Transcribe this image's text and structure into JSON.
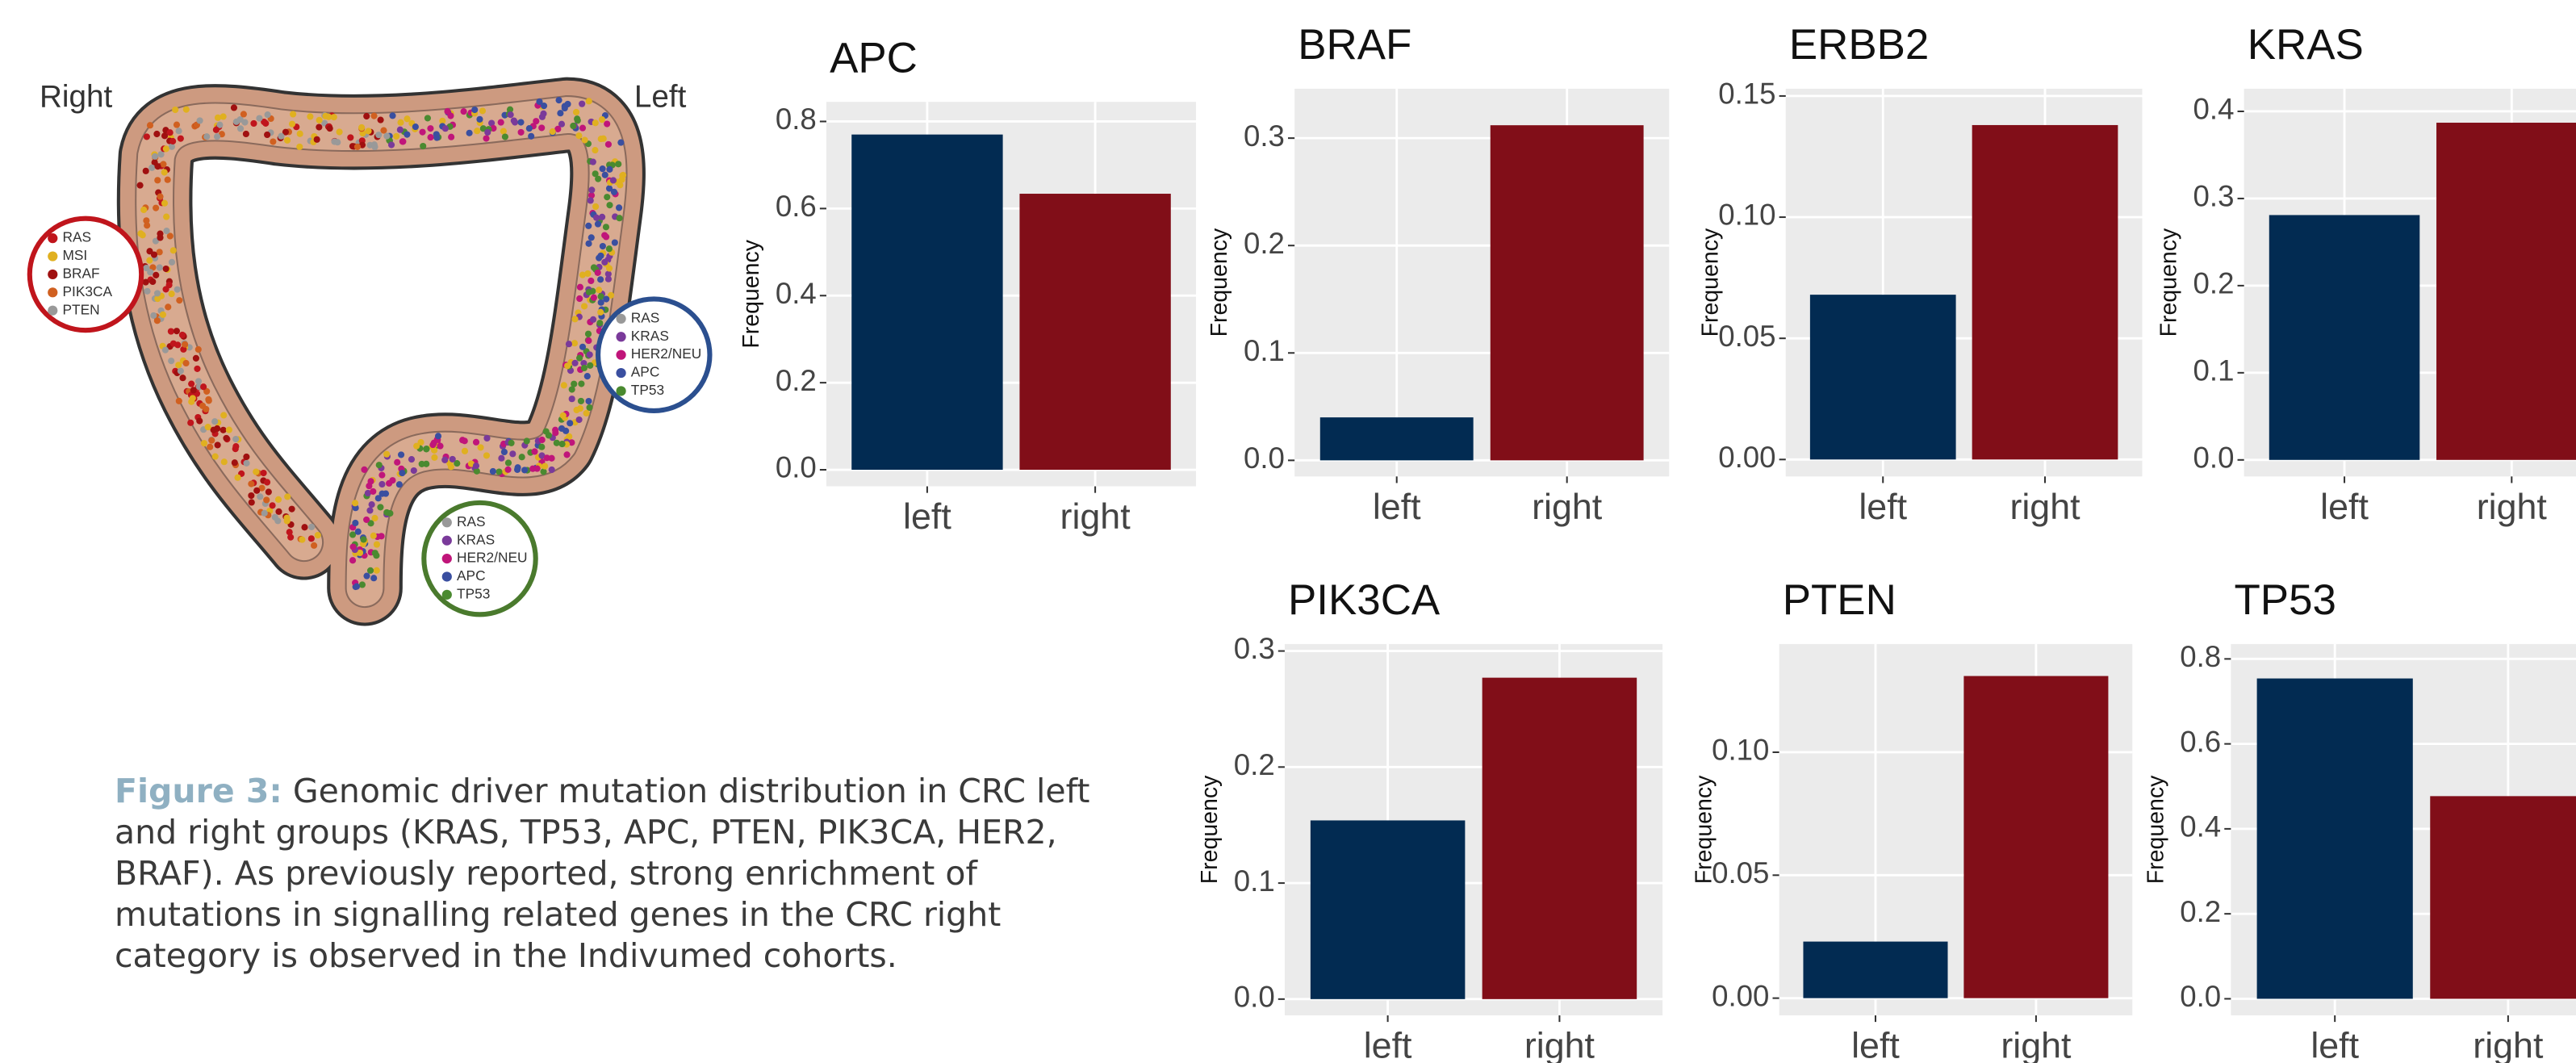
{
  "figure": {
    "side_labels": [
      "Right",
      "Left"
    ],
    "legends": [
      [
        "RAS",
        "MSI",
        "BRAF",
        "PIK3CA",
        "PTEN"
      ],
      [
        "RAS",
        "KRAS",
        "HER2/NEU",
        "APC",
        "TP53"
      ],
      [
        "RAS",
        "KRAS",
        "HER2/NEU",
        "APC",
        "TP53"
      ]
    ]
  },
  "caption": {
    "label": "Figure 3:",
    "text": "Genomic driver mutation distribution in CRC left and right groups (KRAS, TP53, APC, PTEN, PIK3CA, HER2, BRAF). As previously reported, strong enrichment of mutations in signalling related genes in the CRC right category is observed in the Indivumed cohorts."
  },
  "chart_data": [
    {
      "type": "bar",
      "title": "APC",
      "y_label": "Frequency",
      "categories": [
        "left",
        "right"
      ],
      "values": [
        0.77,
        0.634
      ],
      "colors": [
        "#022b52",
        "#810e18"
      ],
      "ylim": [
        -0.038,
        0.845
      ],
      "yticks": [
        {
          "value": 0,
          "label": "0.0"
        },
        0.2,
        0.4,
        0.6,
        0.8
      ],
      "grid": true
    },
    {
      "type": "bar",
      "title": "BRAF",
      "y_label": "Frequency",
      "categories": [
        "left",
        "right"
      ],
      "values": [
        0.04,
        0.312
      ],
      "colors": [
        "#022b52",
        "#810e18"
      ],
      "ylim": [
        -0.015,
        0.346
      ],
      "yticks": [
        {
          "value": 0,
          "label": "0.0"
        },
        0.1,
        0.2,
        0.3
      ],
      "grid": true
    },
    {
      "type": "bar",
      "title": "ERBB2",
      "y_label": "Frequency",
      "categories": [
        "left",
        "right"
      ],
      "values": [
        0.068,
        0.138
      ],
      "colors": [
        "#022b52",
        "#810e18"
      ],
      "ylim": [
        -0.007,
        0.153
      ],
      "yticks": [
        {
          "value": 0,
          "label": "0.00"
        },
        0.05,
        {
          "value": 0.1,
          "label": "0.10"
        },
        0.15
      ],
      "grid": true
    },
    {
      "type": "bar",
      "title": "KRAS",
      "y_label": "Frequency",
      "categories": [
        "left",
        "right"
      ],
      "values": [
        0.281,
        0.387
      ],
      "colors": [
        "#022b52",
        "#810e18"
      ],
      "ylim": [
        -0.019,
        0.426
      ],
      "yticks": [
        {
          "value": 0,
          "label": "0.0"
        },
        0.1,
        0.2,
        0.3,
        0.4
      ],
      "grid": true
    },
    {
      "type": "bar",
      "title": "PIK3CA",
      "y_label": "Frequency",
      "categories": [
        "left",
        "right"
      ],
      "values": [
        0.154,
        0.277
      ],
      "colors": [
        "#022b52",
        "#810e18"
      ],
      "ylim": [
        -0.014,
        0.306
      ],
      "yticks": [
        {
          "value": 0,
          "label": "0.0"
        },
        0.1,
        0.2,
        0.3
      ],
      "grid": true
    },
    {
      "type": "bar",
      "title": "PTEN",
      "y_label": "Frequency",
      "categories": [
        "left",
        "right"
      ],
      "values": [
        0.023,
        0.131
      ],
      "colors": [
        "#022b52",
        "#810e18"
      ],
      "ylim": [
        -0.007,
        0.144
      ],
      "yticks": [
        {
          "value": 0,
          "label": "0.00"
        },
        0.05,
        {
          "value": 0.1,
          "label": "0.10"
        }
      ],
      "grid": true
    },
    {
      "type": "bar",
      "title": "TP53",
      "y_label": "Frequency",
      "categories": [
        "left",
        "right"
      ],
      "values": [
        0.754,
        0.477
      ],
      "colors": [
        "#022b52",
        "#810e18"
      ],
      "ylim": [
        -0.039,
        0.835
      ],
      "yticks": [
        {
          "value": 0,
          "label": "0.0"
        },
        0.2,
        0.4,
        0.6,
        0.8
      ],
      "grid": true
    }
  ]
}
